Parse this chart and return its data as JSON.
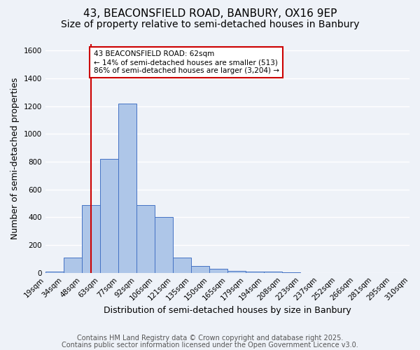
{
  "title_line1": "43, BEACONSFIELD ROAD, BANBURY, OX16 9EP",
  "title_line2": "Size of property relative to semi-detached houses in Banbury",
  "xlabel": "Distribution of semi-detached houses by size in Banbury",
  "ylabel": "Number of semi-detached properties",
  "bin_labels": [
    "19sqm",
    "34sqm",
    "48sqm",
    "63sqm",
    "77sqm",
    "92sqm",
    "106sqm",
    "121sqm",
    "135sqm",
    "150sqm",
    "165sqm",
    "179sqm",
    "194sqm",
    "208sqm",
    "223sqm",
    "237sqm",
    "252sqm",
    "266sqm",
    "281sqm",
    "295sqm",
    "310sqm"
  ],
  "bar_heights": [
    10,
    110,
    490,
    820,
    1220,
    490,
    400,
    110,
    50,
    30,
    15,
    10,
    10,
    5,
    0,
    0,
    0,
    0,
    0,
    0
  ],
  "bar_color": "#aec6e8",
  "bar_edge_color": "#4472c4",
  "property_line_color": "#cc0000",
  "annotation_text": "43 BEACONSFIELD ROAD: 62sqm\n← 14% of semi-detached houses are smaller (513)\n86% of semi-detached houses are larger (3,204) →",
  "annotation_box_color": "#ffffff",
  "annotation_box_edge_color": "#cc0000",
  "ylim": [
    0,
    1650
  ],
  "yticks": [
    0,
    200,
    400,
    600,
    800,
    1000,
    1200,
    1400,
    1600
  ],
  "footnote_line1": "Contains HM Land Registry data © Crown copyright and database right 2025.",
  "footnote_line2": "Contains public sector information licensed under the Open Government Licence v3.0.",
  "background_color": "#eef2f8",
  "grid_color": "#ffffff",
  "title1_fontsize": 11,
  "title2_fontsize": 10,
  "axis_label_fontsize": 9,
  "tick_fontsize": 7.5,
  "annotation_fontsize": 7.5,
  "footnote_fontsize": 7
}
